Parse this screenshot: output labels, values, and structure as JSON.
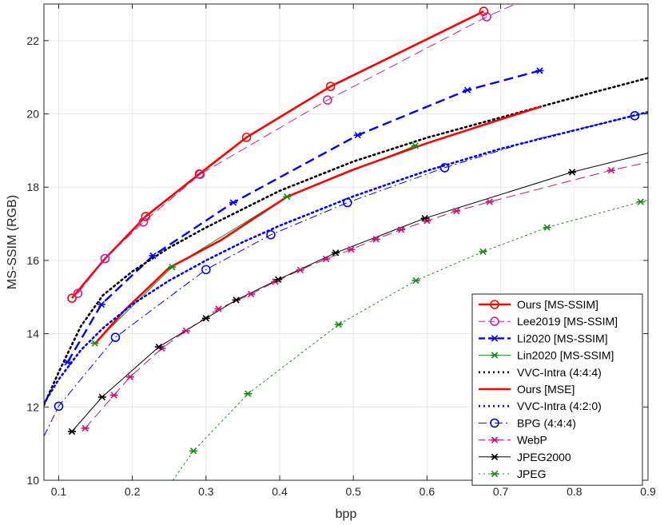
{
  "chart_data": {
    "type": "line",
    "xlabel": "bpp",
    "ylabel": "MS-SSIM (RGB)",
    "xlim": [
      0.08,
      0.9
    ],
    "ylim": [
      10,
      23
    ],
    "xticks": [
      0.1,
      0.2,
      0.3,
      0.4,
      0.5,
      0.6,
      0.7,
      0.8,
      0.9
    ],
    "xtick_labels": [
      "0.1",
      "0.2",
      "0.3",
      "0.4",
      "0.5",
      "0.6",
      "0.7",
      "0.8",
      "0.9"
    ],
    "yticks": [
      10,
      12,
      14,
      16,
      18,
      20,
      22
    ],
    "ytick_labels": [
      "10",
      "12",
      "14",
      "16",
      "18",
      "20",
      "22"
    ],
    "grid": true,
    "legend_position": "bottom-right",
    "series": [
      {
        "name": "Ours [MS-SSIM]",
        "color": "#ff0000",
        "dash": "solid",
        "width": 2.6,
        "marker": "circle",
        "marker_size": 5,
        "points": [
          [
            0.118,
            14.97
          ],
          [
            0.163,
            16.05
          ],
          [
            0.218,
            17.2
          ],
          [
            0.291,
            18.36
          ],
          [
            0.355,
            19.36
          ],
          [
            0.469,
            20.75
          ],
          [
            0.677,
            22.8
          ]
        ],
        "markers": [
          [
            0.118,
            14.97
          ],
          [
            0.163,
            16.05
          ],
          [
            0.218,
            17.2
          ],
          [
            0.291,
            18.36
          ],
          [
            0.355,
            19.36
          ],
          [
            0.469,
            20.75
          ],
          [
            0.677,
            22.8
          ]
        ]
      },
      {
        "name": "Lee2019 [MS-SSIM]",
        "color": "#cc2299",
        "dash": "long",
        "width": 1,
        "marker": "circle",
        "marker_size": 5,
        "points": [
          [
            0.126,
            15.1
          ],
          [
            0.163,
            16.05
          ],
          [
            0.215,
            17.05
          ],
          [
            0.292,
            18.35
          ],
          [
            0.465,
            20.38
          ],
          [
            0.681,
            22.65
          ],
          [
            0.72,
            23.0
          ]
        ],
        "markers": [
          [
            0.126,
            15.1
          ],
          [
            0.163,
            16.05
          ],
          [
            0.215,
            17.05
          ],
          [
            0.292,
            18.35
          ],
          [
            0.465,
            20.38
          ],
          [
            0.681,
            22.65
          ]
        ]
      },
      {
        "name": "Li2020 [MS-SSIM]",
        "color": "#0000ff",
        "dash": "long",
        "width": 2.4,
        "marker": "asterisk",
        "marker_size": 5,
        "points": [
          [
            0.112,
            13.22
          ],
          [
            0.158,
            14.8
          ],
          [
            0.228,
            16.13
          ],
          [
            0.337,
            17.58
          ],
          [
            0.506,
            19.42
          ],
          [
            0.655,
            20.65
          ],
          [
            0.753,
            21.18
          ]
        ],
        "markers": [
          [
            0.112,
            13.22
          ],
          [
            0.158,
            14.8
          ],
          [
            0.228,
            16.13
          ],
          [
            0.337,
            17.58
          ],
          [
            0.506,
            19.42
          ],
          [
            0.655,
            20.65
          ],
          [
            0.753,
            21.18
          ]
        ]
      },
      {
        "name": "Lin2020 [MS-SSIM]",
        "color": "#1a8a1a",
        "dash": "solid",
        "width": 1,
        "marker": "asterisk",
        "marker_size": 5,
        "points": [
          [
            0.149,
            13.74
          ],
          [
            0.254,
            15.82
          ],
          [
            0.41,
            17.74
          ],
          [
            0.584,
            19.13
          ]
        ],
        "markers": [
          [
            0.149,
            13.74
          ],
          [
            0.254,
            15.82
          ],
          [
            0.41,
            17.74
          ],
          [
            0.584,
            19.13
          ]
        ]
      },
      {
        "name": "VVC-Intra (4:4:4)",
        "color": "#000000",
        "dash": "dot",
        "width": 2.6,
        "marker": "none",
        "marker_size": 0,
        "points": [
          [
            0.08,
            12.05
          ],
          [
            0.1,
            12.95
          ],
          [
            0.13,
            14.2
          ],
          [
            0.16,
            15.05
          ],
          [
            0.2,
            15.7
          ],
          [
            0.25,
            16.35
          ],
          [
            0.3,
            16.9
          ],
          [
            0.35,
            17.4
          ],
          [
            0.4,
            17.9
          ],
          [
            0.5,
            18.7
          ],
          [
            0.6,
            19.35
          ],
          [
            0.7,
            19.9
          ],
          [
            0.8,
            20.45
          ],
          [
            0.9,
            20.98
          ]
        ],
        "markers": []
      },
      {
        "name": "Ours [MSE]",
        "color": "#ff0000",
        "dash": "solid",
        "width": 2.6,
        "marker": "none",
        "marker_size": 0,
        "points": [
          [
            0.149,
            13.72
          ],
          [
            0.19,
            14.65
          ],
          [
            0.25,
            15.8
          ],
          [
            0.32,
            16.55
          ],
          [
            0.41,
            17.74
          ],
          [
            0.5,
            18.48
          ],
          [
            0.6,
            19.2
          ],
          [
            0.7,
            19.85
          ],
          [
            0.755,
            20.2
          ]
        ],
        "markers": []
      },
      {
        "name": "VVC-Intra (4:2:0)",
        "color": "#0000ff",
        "dash": "dot",
        "width": 2.6,
        "marker": "none",
        "marker_size": 0,
        "points": [
          [
            0.08,
            12.1
          ],
          [
            0.1,
            12.75
          ],
          [
            0.13,
            13.55
          ],
          [
            0.16,
            14.15
          ],
          [
            0.2,
            14.8
          ],
          [
            0.25,
            15.45
          ],
          [
            0.3,
            16.0
          ],
          [
            0.35,
            16.5
          ],
          [
            0.4,
            16.95
          ],
          [
            0.5,
            17.75
          ],
          [
            0.6,
            18.45
          ],
          [
            0.7,
            19.05
          ],
          [
            0.8,
            19.55
          ],
          [
            0.9,
            20.05
          ]
        ],
        "markers": []
      },
      {
        "name": "BPG (4:4:4)",
        "color": "#0000ff",
        "dash": "dashdot",
        "width": 1,
        "marker": "circle",
        "marker_size": 5,
        "points": [
          [
            0.08,
            11.2
          ],
          [
            0.1,
            12.02
          ],
          [
            0.177,
            13.9
          ],
          [
            0.3,
            15.75
          ],
          [
            0.388,
            16.7
          ],
          [
            0.492,
            17.58
          ],
          [
            0.624,
            18.53
          ],
          [
            0.75,
            19.32
          ],
          [
            0.882,
            19.95
          ],
          [
            0.9,
            20.05
          ]
        ],
        "markers": [
          [
            0.1,
            12.02
          ],
          [
            0.177,
            13.9
          ],
          [
            0.3,
            15.75
          ],
          [
            0.388,
            16.7
          ],
          [
            0.492,
            17.58
          ],
          [
            0.624,
            18.53
          ],
          [
            0.882,
            19.95
          ]
        ]
      },
      {
        "name": "WebP",
        "color": "#cc1177",
        "dash": "long",
        "width": 1,
        "marker": "asterisk",
        "marker_size": 5,
        "points": [
          [
            0.136,
            11.42
          ],
          [
            0.175,
            12.32
          ],
          [
            0.197,
            12.82
          ],
          [
            0.24,
            13.6
          ],
          [
            0.273,
            14.08
          ],
          [
            0.317,
            14.68
          ],
          [
            0.361,
            15.08
          ],
          [
            0.394,
            15.42
          ],
          [
            0.428,
            15.74
          ],
          [
            0.463,
            16.04
          ],
          [
            0.497,
            16.3
          ],
          [
            0.531,
            16.58
          ],
          [
            0.565,
            16.84
          ],
          [
            0.6,
            17.08
          ],
          [
            0.64,
            17.35
          ],
          [
            0.685,
            17.6
          ],
          [
            0.85,
            18.46
          ],
          [
            0.9,
            18.68
          ]
        ],
        "markers": [
          [
            0.136,
            11.42
          ],
          [
            0.175,
            12.32
          ],
          [
            0.197,
            12.82
          ],
          [
            0.24,
            13.6
          ],
          [
            0.273,
            14.08
          ],
          [
            0.317,
            14.68
          ],
          [
            0.361,
            15.08
          ],
          [
            0.394,
            15.42
          ],
          [
            0.428,
            15.74
          ],
          [
            0.463,
            16.04
          ],
          [
            0.497,
            16.3
          ],
          [
            0.531,
            16.58
          ],
          [
            0.565,
            16.84
          ],
          [
            0.6,
            17.08
          ],
          [
            0.64,
            17.35
          ],
          [
            0.685,
            17.6
          ],
          [
            0.85,
            18.46
          ]
        ]
      },
      {
        "name": "JPEG2000",
        "color": "#000000",
        "dash": "solid",
        "width": 1,
        "marker": "asterisk",
        "marker_size": 5,
        "points": [
          [
            0.118,
            11.33
          ],
          [
            0.159,
            12.27
          ],
          [
            0.236,
            13.64
          ],
          [
            0.3,
            14.42
          ],
          [
            0.341,
            14.92
          ],
          [
            0.398,
            15.48
          ],
          [
            0.476,
            16.21
          ],
          [
            0.597,
            17.15
          ],
          [
            0.797,
            18.41
          ],
          [
            0.9,
            18.93
          ]
        ],
        "markers": [
          [
            0.118,
            11.33
          ],
          [
            0.159,
            12.27
          ],
          [
            0.236,
            13.64
          ],
          [
            0.3,
            14.42
          ],
          [
            0.341,
            14.92
          ],
          [
            0.398,
            15.48
          ],
          [
            0.476,
            16.21
          ],
          [
            0.597,
            17.15
          ],
          [
            0.797,
            18.41
          ]
        ]
      },
      {
        "name": "JPEG",
        "color": "#1a8a1a",
        "dash": "dot",
        "width": 1,
        "marker": "asterisk",
        "marker_size": 5,
        "points": [
          [
            0.255,
            10.0
          ],
          [
            0.283,
            10.8
          ],
          [
            0.357,
            12.36
          ],
          [
            0.48,
            14.25
          ],
          [
            0.585,
            15.45
          ],
          [
            0.676,
            16.24
          ],
          [
            0.763,
            16.9
          ],
          [
            0.89,
            17.6
          ],
          [
            0.9,
            17.65
          ]
        ],
        "markers": [
          [
            0.283,
            10.8
          ],
          [
            0.357,
            12.36
          ],
          [
            0.48,
            14.25
          ],
          [
            0.585,
            15.45
          ],
          [
            0.676,
            16.24
          ],
          [
            0.763,
            16.9
          ],
          [
            0.89,
            17.6
          ]
        ]
      }
    ]
  }
}
